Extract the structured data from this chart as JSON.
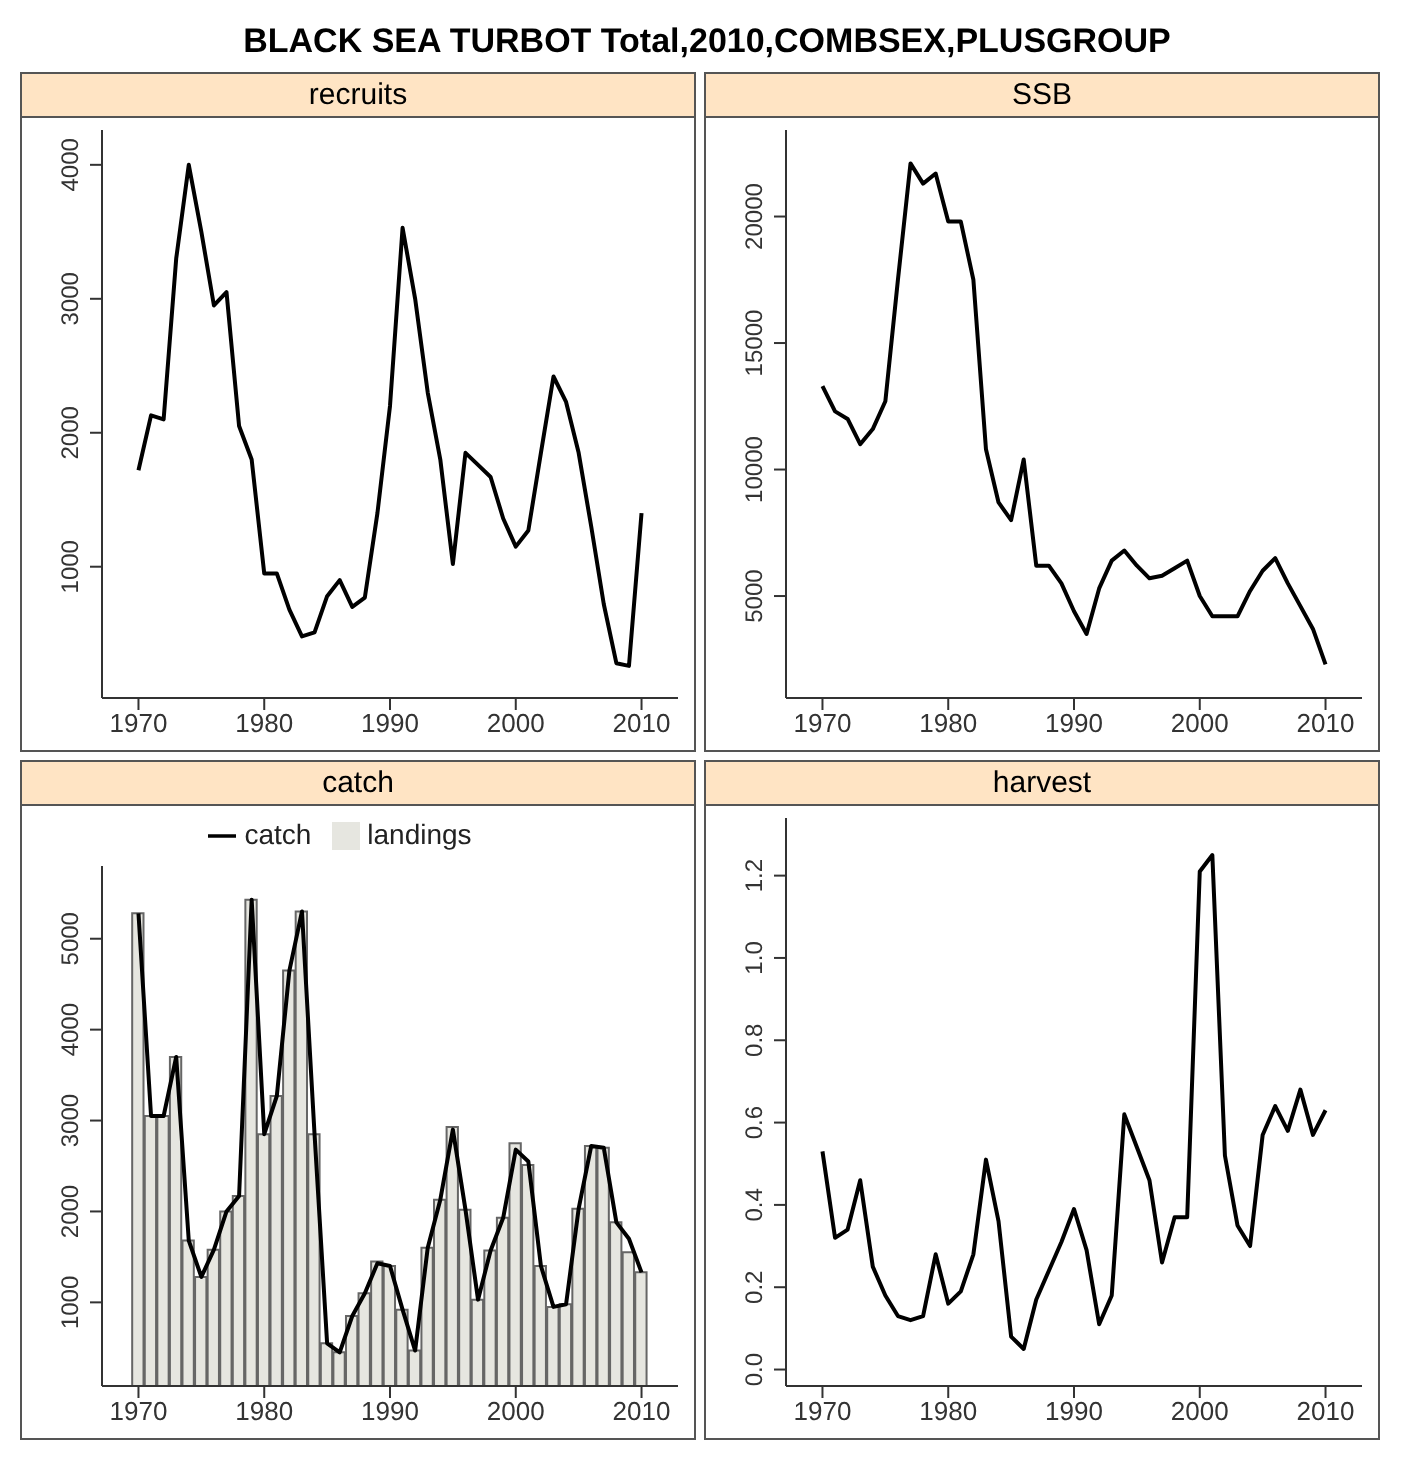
{
  "chart_data": [
    {
      "type": "line",
      "title": "recruits",
      "annotations": [
        "BLACK SEA TURBOT Total,2010,COMBSEX,PLUSGROUP"
      ],
      "x": [
        1970,
        1971,
        1972,
        1973,
        1974,
        1975,
        1976,
        1977,
        1978,
        1979,
        1980,
        1981,
        1982,
        1983,
        1984,
        1985,
        1986,
        1987,
        1988,
        1989,
        1990,
        1991,
        1992,
        1993,
        1994,
        1995,
        1996,
        1997,
        1998,
        1999,
        2000,
        2001,
        2002,
        2003,
        2004,
        2005,
        2006,
        2007,
        2008,
        2009,
        2010
      ],
      "xlim": [
        1967.1,
        2012.9
      ],
      "xticks": [
        1970,
        1980,
        1990,
        2000,
        2010
      ],
      "ylim": [
        20,
        4260
      ],
      "yticks": [
        1000,
        2000,
        3000,
        4000
      ],
      "series": [
        {
          "color": "#000000",
          "values": [
            1720,
            2130,
            2100,
            3300,
            4000,
            3500,
            2950,
            3050,
            2050,
            1800,
            950,
            950,
            680,
            480,
            510,
            780,
            900,
            700,
            770,
            1400,
            2200,
            3530,
            3000,
            2300,
            1800,
            1020,
            1850,
            1760,
            1670,
            1360,
            1150,
            1270,
            1850,
            2420,
            2230,
            1850,
            1300,
            720,
            280,
            260,
            1400
          ]
        }
      ]
    },
    {
      "type": "line",
      "title": "SSB",
      "x": [
        1970,
        1971,
        1972,
        1973,
        1974,
        1975,
        1976,
        1977,
        1978,
        1979,
        1980,
        1981,
        1982,
        1983,
        1984,
        1985,
        1986,
        1987,
        1988,
        1989,
        1990,
        1991,
        1992,
        1993,
        1994,
        1995,
        1996,
        1997,
        1998,
        1999,
        2000,
        2001,
        2002,
        2003,
        2004,
        2005,
        2006,
        2007,
        2008,
        2009,
        2010
      ],
      "xlim": [
        1967.1,
        2012.9
      ],
      "xticks": [
        1970,
        1980,
        1990,
        2000,
        2010
      ],
      "ylim": [
        970,
        23420
      ],
      "yticks": [
        5000,
        10000,
        15000,
        20000
      ],
      "series": [
        {
          "color": "#000000",
          "values": [
            13300,
            12300,
            12000,
            11000,
            11600,
            12700,
            17500,
            22100,
            21300,
            21700,
            19800,
            19800,
            17500,
            10800,
            8700,
            8000,
            10400,
            6200,
            6200,
            5500,
            4400,
            3500,
            5300,
            6400,
            6800,
            6200,
            5700,
            5800,
            6100,
            6400,
            5000,
            4200,
            4200,
            4200,
            5200,
            6000,
            6500,
            5500,
            4600,
            3700,
            2300
          ]
        }
      ]
    },
    {
      "type": "line",
      "title": "catch",
      "legend": "top",
      "x": [
        1970,
        1971,
        1972,
        1973,
        1974,
        1975,
        1976,
        1977,
        1978,
        1979,
        1980,
        1981,
        1982,
        1983,
        1984,
        1985,
        1986,
        1987,
        1988,
        1989,
        1990,
        1991,
        1992,
        1993,
        1994,
        1995,
        1996,
        1997,
        1998,
        1999,
        2000,
        2001,
        2002,
        2003,
        2004,
        2005,
        2006,
        2007,
        2008,
        2009,
        2010
      ],
      "xlim": [
        1967.1,
        2012.9
      ],
      "xticks": [
        1970,
        1980,
        1990,
        2000,
        2010
      ],
      "ylim": [
        80,
        5800
      ],
      "yticks": [
        1000,
        2000,
        3000,
        4000,
        5000
      ],
      "series": [
        {
          "name": "landings",
          "type": "bar",
          "color": "#e6e6e0",
          "values": [
            5280,
            3050,
            3050,
            3700,
            1680,
            1280,
            1580,
            2000,
            2170,
            5430,
            2850,
            3270,
            4650,
            5300,
            2850,
            550,
            450,
            850,
            1100,
            1450,
            1400,
            920,
            470,
            1600,
            2130,
            2930,
            2020,
            1030,
            1570,
            1930,
            2750,
            2510,
            1400,
            950,
            980,
            2030,
            2720,
            2700,
            1880,
            1550,
            1330
          ]
        },
        {
          "name": "catch",
          "type": "line",
          "color": "#000000",
          "values": [
            5280,
            3050,
            3050,
            3700,
            1680,
            1280,
            1580,
            2000,
            2170,
            5430,
            2850,
            3270,
            4650,
            5300,
            2850,
            550,
            450,
            850,
            1100,
            1430,
            1400,
            920,
            470,
            1600,
            2130,
            2900,
            2020,
            1030,
            1570,
            1930,
            2680,
            2550,
            1400,
            950,
            980,
            2030,
            2720,
            2700,
            1880,
            1700,
            1330
          ]
        }
      ]
    },
    {
      "type": "line",
      "title": "harvest",
      "x": [
        1970,
        1971,
        1972,
        1973,
        1974,
        1975,
        1976,
        1977,
        1978,
        1979,
        1980,
        1981,
        1982,
        1983,
        1984,
        1985,
        1986,
        1987,
        1988,
        1989,
        1990,
        1991,
        1992,
        1993,
        1994,
        1995,
        1996,
        1997,
        1998,
        1999,
        2000,
        2001,
        2002,
        2003,
        2004,
        2005,
        2006,
        2007,
        2008,
        2009,
        2010
      ],
      "xlim": [
        1967.1,
        2012.9
      ],
      "xticks": [
        1970,
        1980,
        1990,
        2000,
        2010
      ],
      "ylim": [
        -0.04,
        1.34
      ],
      "yticks": [
        {
          "value": 0,
          "label": "0.0"
        },
        0.2,
        0.4,
        0.6,
        0.8,
        {
          "value": 1,
          "label": "1.0"
        },
        1.2
      ],
      "series": [
        {
          "color": "#000000",
          "values": [
            0.53,
            0.32,
            0.34,
            0.46,
            0.25,
            0.18,
            0.13,
            0.12,
            0.13,
            0.28,
            0.16,
            0.19,
            0.28,
            0.51,
            0.36,
            0.08,
            0.05,
            0.17,
            0.24,
            0.31,
            0.39,
            0.29,
            0.11,
            0.18,
            0.62,
            0.54,
            0.46,
            0.26,
            0.37,
            0.37,
            1.21,
            1.25,
            0.52,
            0.35,
            0.3,
            0.57,
            0.64,
            0.58,
            0.68,
            0.57,
            0.63
          ]
        }
      ]
    }
  ]
}
